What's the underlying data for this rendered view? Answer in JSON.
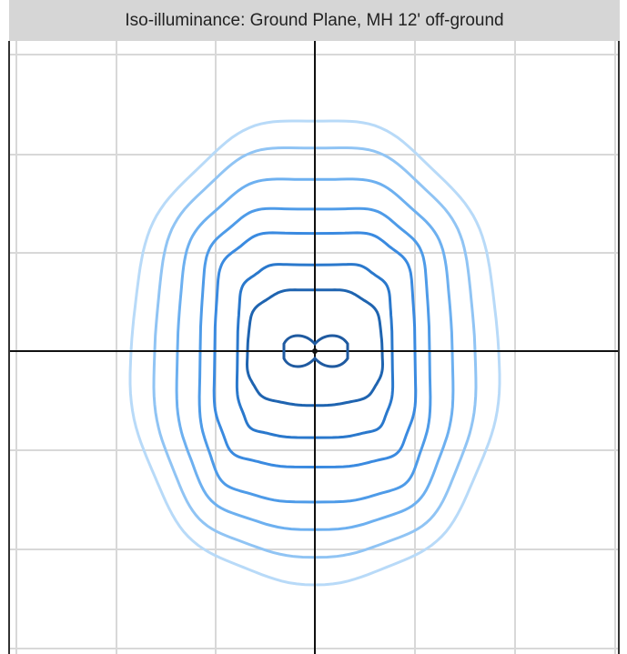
{
  "header": {
    "title": "Iso-illuminance: Ground Plane, MH 12' off-ground"
  }
}
